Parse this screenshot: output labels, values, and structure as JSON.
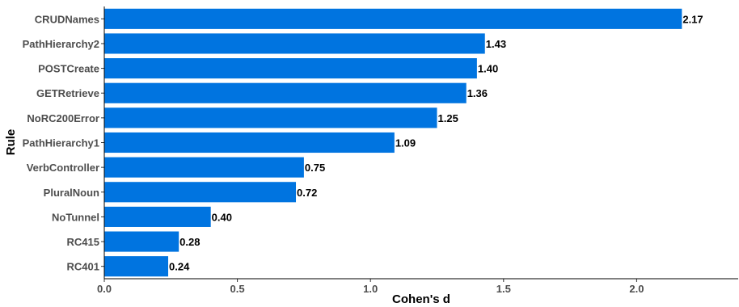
{
  "chart_data": {
    "type": "bar",
    "orientation": "horizontal",
    "xlabel": "Cohen's d",
    "ylabel": "Rule",
    "xlim": [
      0,
      2.38
    ],
    "xticks": [
      0.0,
      0.5,
      1.0,
      1.5,
      2.0
    ],
    "xtick_labels": [
      "0.0",
      "0.5",
      "1.0",
      "1.5",
      "2.0"
    ],
    "grid": false,
    "legend": "none",
    "bar_color": "#0074e0",
    "categories": [
      "CRUDNames",
      "PathHierarchy2",
      "POSTCreate",
      "GETRetrieve",
      "NoRC200Error",
      "PathHierarchy1",
      "VerbController",
      "PluralNoun",
      "NoTunnel",
      "RC415",
      "RC401"
    ],
    "values": [
      2.17,
      1.43,
      1.4,
      1.36,
      1.25,
      1.09,
      0.75,
      0.72,
      0.4,
      0.28,
      0.24
    ],
    "value_labels": [
      "2.17",
      "1.43",
      "1.40",
      "1.36",
      "1.25",
      "1.09",
      "0.75",
      "0.72",
      "0.40",
      "0.28",
      "0.24"
    ]
  }
}
